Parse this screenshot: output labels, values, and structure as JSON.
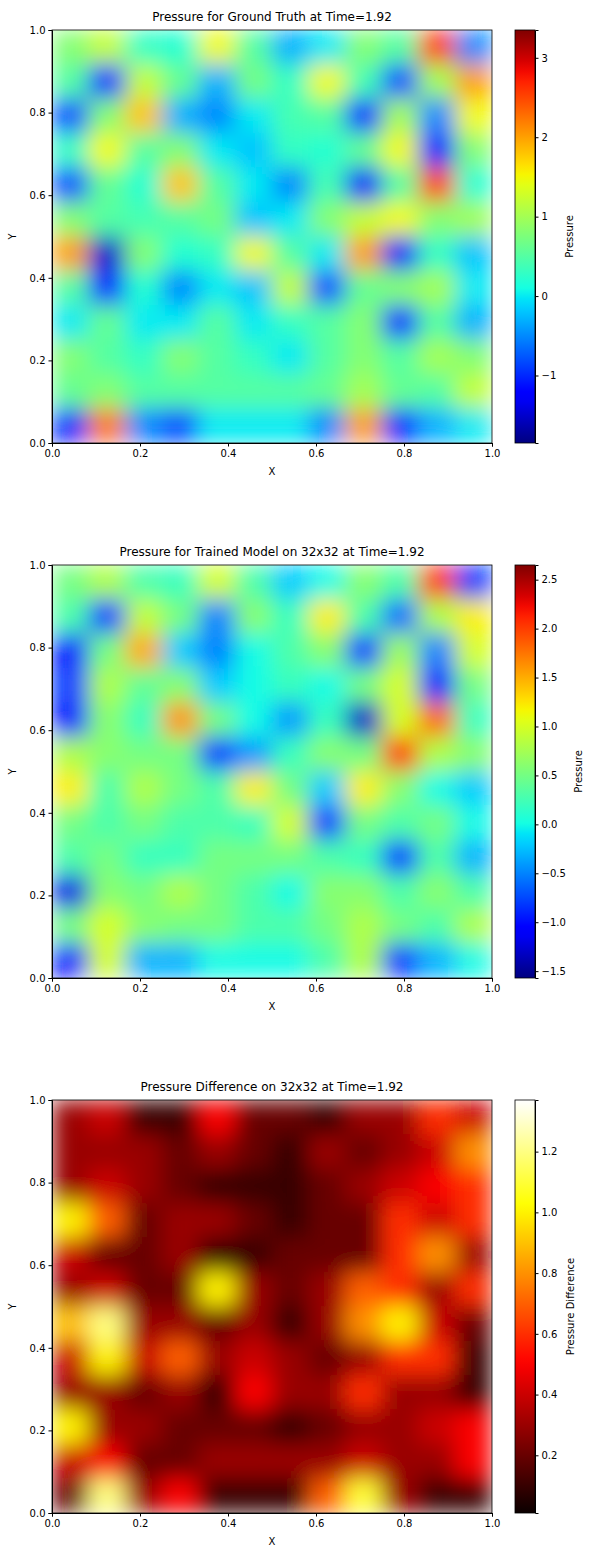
{
  "chart_data": [
    {
      "type": "heatmap",
      "title": "Pressure for Ground Truth at Time=1.92",
      "x_label": "X",
      "y_label": "Y",
      "xlim": [
        0,
        1
      ],
      "ylim": [
        0,
        1
      ],
      "xticks": [
        {
          "value": 0,
          "label": "0.0"
        },
        {
          "value": 0.2,
          "label": "0.2"
        },
        {
          "value": 0.4,
          "label": "0.4"
        },
        {
          "value": 0.6,
          "label": "0.6"
        },
        {
          "value": 0.8,
          "label": "0.8"
        },
        {
          "value": 1,
          "label": "1.0"
        }
      ],
      "yticks": [
        {
          "value": 0,
          "label": "0.0"
        },
        {
          "value": 0.2,
          "label": "0.2"
        },
        {
          "value": 0.4,
          "label": "0.4"
        },
        {
          "value": 0.6,
          "label": "0.6"
        },
        {
          "value": 0.8,
          "label": "0.8"
        },
        {
          "value": 1,
          "label": "1.0"
        }
      ],
      "color": "jet",
      "colorbar_label": "Pressure",
      "colorbar_range": [
        -1.85,
        3.35
      ],
      "colorbar_ticks": [
        {
          "value": -1,
          "label": "−1"
        },
        0,
        1,
        2,
        3
      ],
      "cells": [
        [
          0.8,
          1.2,
          0.3,
          0.2,
          1.5,
          0.5,
          -0.3,
          0.0,
          0.8,
          0.5,
          2.5,
          -0.5
        ],
        [
          0.5,
          -1.0,
          1.2,
          0.6,
          -0.3,
          0.7,
          0.3,
          1.5,
          0.4,
          -0.8,
          1.0,
          2.0
        ],
        [
          -0.8,
          0.8,
          1.8,
          -0.3,
          -0.5,
          0.0,
          0.4,
          0.5,
          -1.0,
          1.0,
          -0.5,
          1.5
        ],
        [
          0.3,
          1.5,
          0.5,
          0.8,
          0.0,
          -0.2,
          0.3,
          0.2,
          0.6,
          1.5,
          -1.2,
          0.8
        ],
        [
          -0.8,
          0.6,
          0.2,
          1.8,
          0.5,
          0.0,
          -0.5,
          0.4,
          -1.3,
          0.5,
          2.5,
          0.2
        ],
        [
          0.8,
          0.5,
          0.4,
          0.5,
          0.7,
          -0.2,
          0.0,
          0.8,
          1.2,
          1.5,
          0.8,
          1.0
        ],
        [
          2.0,
          -1.5,
          0.8,
          0.2,
          0.3,
          1.5,
          0.5,
          0.0,
          2.0,
          -1.3,
          0.3,
          -0.2
        ],
        [
          0.5,
          -1.0,
          0.2,
          -0.5,
          0.0,
          -0.2,
          1.2,
          -0.8,
          0.6,
          0.8,
          1.0,
          0.0
        ],
        [
          0.0,
          0.6,
          0.0,
          0.0,
          0.5,
          0.0,
          0.3,
          0.5,
          0.8,
          -1.0,
          0.5,
          -0.3
        ],
        [
          0.8,
          0.5,
          0.3,
          0.8,
          0.5,
          0.3,
          0.0,
          0.5,
          0.8,
          0.5,
          1.0,
          0.8
        ],
        [
          0.6,
          0.8,
          0.5,
          0.5,
          0.5,
          0.5,
          0.5,
          0.6,
          1.0,
          0.6,
          0.5,
          1.2
        ],
        [
          -1.0,
          2.2,
          -0.5,
          -0.8,
          0.0,
          0.0,
          0.0,
          -0.5,
          2.0,
          -1.0,
          -0.3,
          0.0
        ]
      ]
    },
    {
      "type": "heatmap",
      "title": "Pressure for Trained Model on 32x32 at Time=1.92",
      "x_label": "X",
      "y_label": "Y",
      "xlim": [
        0,
        1
      ],
      "ylim": [
        0,
        1
      ],
      "xticks": [
        {
          "value": 0,
          "label": "0.0"
        },
        {
          "value": 0.2,
          "label": "0.2"
        },
        {
          "value": 0.4,
          "label": "0.4"
        },
        {
          "value": 0.6,
          "label": "0.6"
        },
        {
          "value": 0.8,
          "label": "0.8"
        },
        {
          "value": 1,
          "label": "1.0"
        }
      ],
      "yticks": [
        {
          "value": 0,
          "label": "0.0"
        },
        {
          "value": 0.2,
          "label": "0.2"
        },
        {
          "value": 0.4,
          "label": "0.4"
        },
        {
          "value": 0.6,
          "label": "0.6"
        },
        {
          "value": 0.8,
          "label": "0.8"
        },
        {
          "value": 1,
          "label": "1.0"
        }
      ],
      "color": "jet",
      "colorbar_label": "Pressure",
      "colorbar_range": [
        -1.57,
        2.65
      ],
      "colorbar_ticks": [
        {
          "value": -1.5,
          "label": "−1.5"
        },
        {
          "value": -1,
          "label": "−1.0"
        },
        {
          "value": -0.5,
          "label": "−0.5"
        },
        {
          "value": 0,
          "label": "0.0"
        },
        0.5,
        {
          "value": 1,
          "label": "1.0"
        },
        1.5,
        {
          "value": 2,
          "label": "2.0"
        },
        2.5
      ],
      "cells": [
        [
          0.5,
          0.8,
          0.3,
          0.2,
          1.0,
          0.3,
          -0.2,
          0.0,
          0.6,
          0.3,
          2.0,
          -0.8
        ],
        [
          0.3,
          -0.8,
          0.9,
          0.5,
          -0.5,
          0.6,
          0.2,
          1.2,
          0.3,
          -0.6,
          0.8,
          1.2
        ],
        [
          -1.0,
          0.5,
          1.5,
          -0.2,
          -0.5,
          0.0,
          0.3,
          0.6,
          -0.8,
          0.7,
          -0.5,
          1.0
        ],
        [
          -0.8,
          0.8,
          0.4,
          0.6,
          -0.2,
          0.0,
          0.2,
          0.0,
          0.5,
          1.0,
          -1.0,
          0.5
        ],
        [
          -1.0,
          0.6,
          0.2,
          1.6,
          0.5,
          0.0,
          -0.4,
          0.2,
          -1.3,
          1.0,
          1.8,
          0.2
        ],
        [
          0.8,
          0.6,
          0.5,
          0.5,
          -0.8,
          -0.4,
          0.2,
          0.6,
          0.5,
          2.0,
          0.8,
          0.6
        ],
        [
          1.2,
          0.3,
          0.8,
          0.5,
          0.3,
          1.2,
          0.5,
          -0.2,
          1.2,
          0.6,
          0.0,
          -0.2
        ],
        [
          0.5,
          0.3,
          0.5,
          0.3,
          0.3,
          0.2,
          1.0,
          -0.8,
          0.5,
          0.3,
          0.5,
          0.0
        ],
        [
          0.3,
          0.5,
          0.2,
          0.2,
          0.5,
          0.5,
          0.5,
          0.3,
          0.2,
          -0.8,
          0.3,
          -0.3
        ],
        [
          -1.2,
          0.6,
          0.5,
          0.8,
          0.5,
          0.3,
          0.0,
          0.6,
          0.6,
          0.3,
          0.6,
          0.3
        ],
        [
          0.5,
          1.0,
          0.6,
          0.5,
          0.5,
          0.3,
          0.3,
          0.5,
          0.8,
          0.5,
          0.3,
          0.8
        ],
        [
          -1.0,
          1.0,
          -0.3,
          -0.3,
          0.0,
          0.0,
          0.0,
          0.3,
          0.8,
          -0.8,
          -0.3,
          0.0
        ]
      ]
    },
    {
      "type": "heatmap",
      "title": "Pressure Difference on 32x32 at Time=1.92",
      "x_label": "X",
      "y_label": "Y",
      "xlim": [
        0,
        1
      ],
      "ylim": [
        0,
        1
      ],
      "xticks": [
        {
          "value": 0,
          "label": "0.0"
        },
        {
          "value": 0.2,
          "label": "0.2"
        },
        {
          "value": 0.4,
          "label": "0.4"
        },
        {
          "value": 0.6,
          "label": "0.6"
        },
        {
          "value": 0.8,
          "label": "0.8"
        },
        {
          "value": 1,
          "label": "1.0"
        }
      ],
      "yticks": [
        {
          "value": 0,
          "label": "0.0"
        },
        {
          "value": 0.2,
          "label": "0.2"
        },
        {
          "value": 0.4,
          "label": "0.4"
        },
        {
          "value": 0.6,
          "label": "0.6"
        },
        {
          "value": 0.8,
          "label": "0.8"
        },
        {
          "value": 1,
          "label": "1.0"
        }
      ],
      "color": "hot",
      "colorbar_label": "Pressure Difference",
      "colorbar_range": [
        0.01,
        1.37
      ],
      "colorbar_ticks": [
        0.2,
        0.4,
        0.6,
        0.8,
        {
          "value": 1,
          "label": "1.0"
        },
        1.2
      ],
      "cells": [
        [
          0.3,
          0.4,
          0.1,
          0.1,
          0.5,
          0.2,
          0.2,
          0.1,
          0.3,
          0.3,
          0.6,
          0.4
        ],
        [
          0.3,
          0.3,
          0.3,
          0.2,
          0.3,
          0.2,
          0.1,
          0.3,
          0.2,
          0.3,
          0.4,
          0.8
        ],
        [
          0.3,
          0.4,
          0.3,
          0.2,
          0.1,
          0.1,
          0.1,
          0.2,
          0.3,
          0.4,
          0.5,
          0.6
        ],
        [
          1.0,
          0.7,
          0.2,
          0.3,
          0.3,
          0.2,
          0.1,
          0.2,
          0.2,
          0.6,
          0.4,
          0.6
        ],
        [
          0.4,
          0.2,
          0.2,
          0.3,
          0.1,
          0.1,
          0.2,
          0.2,
          0.2,
          0.6,
          0.8,
          0.3
        ],
        [
          0.3,
          0.4,
          0.2,
          0.2,
          1.0,
          0.3,
          0.2,
          0.3,
          0.7,
          0.6,
          0.3,
          0.6
        ],
        [
          0.9,
          1.2,
          0.3,
          0.3,
          0.2,
          0.3,
          0.1,
          0.3,
          0.8,
          1.0,
          0.4,
          0.2
        ],
        [
          0.4,
          1.0,
          0.4,
          0.7,
          0.3,
          0.4,
          0.3,
          0.2,
          0.3,
          0.6,
          0.6,
          0.1
        ],
        [
          0.3,
          0.3,
          0.2,
          0.3,
          0.1,
          0.5,
          0.3,
          0.3,
          0.6,
          0.3,
          0.3,
          0.1
        ],
        [
          1.0,
          0.3,
          0.3,
          0.2,
          0.2,
          0.2,
          0.1,
          0.2,
          0.3,
          0.3,
          0.4,
          0.5
        ],
        [
          0.4,
          0.5,
          0.2,
          0.2,
          0.3,
          0.3,
          0.3,
          0.3,
          0.4,
          0.3,
          0.3,
          0.5
        ],
        [
          0.2,
          1.2,
          0.3,
          0.5,
          0.1,
          0.1,
          0.1,
          0.7,
          1.1,
          0.3,
          0.1,
          0.1
        ]
      ]
    }
  ]
}
